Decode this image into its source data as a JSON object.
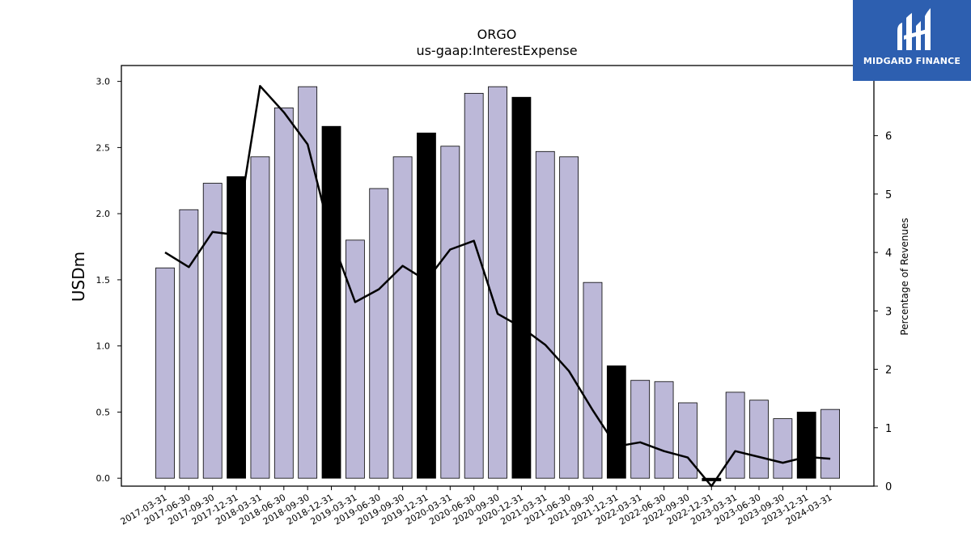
{
  "logo": {
    "text": "MIDGARD FINANCE"
  },
  "chart_data": {
    "type": "bar",
    "title": "ORGO",
    "subtitle": "us-gaap:InterestExpense",
    "ylabel": "USDm",
    "y2label": "Percentage of Revenues",
    "ylim": [
      -0.06,
      3.12
    ],
    "y2lim": [
      0,
      7.2
    ],
    "yticks": [
      "0.0",
      "0.5",
      "1.0",
      "1.5",
      "2.0",
      "2.5",
      "3.0"
    ],
    "y2ticks": [
      "0",
      "1",
      "2",
      "3",
      "4",
      "5",
      "6"
    ],
    "grid": false,
    "categories": [
      "2017-03-31",
      "2017-06-30",
      "2017-09-30",
      "2017-12-31",
      "2018-03-31",
      "2018-06-30",
      "2018-09-30",
      "2018-12-31",
      "2019-03-31",
      "2019-06-30",
      "2019-09-30",
      "2019-12-31",
      "2020-03-31",
      "2020-06-30",
      "2020-09-30",
      "2020-12-31",
      "2021-03-31",
      "2021-06-30",
      "2021-09-30",
      "2021-12-31",
      "2022-03-31",
      "2022-06-30",
      "2022-09-30",
      "2022-12-31",
      "2023-03-31",
      "2023-06-30",
      "2023-09-30",
      "2023-12-31",
      "2024-03-31"
    ],
    "series": [
      {
        "kind": "bar",
        "values": [
          1.59,
          2.03,
          2.23,
          2.28,
          2.43,
          2.8,
          2.96,
          2.66,
          1.8,
          2.19,
          2.43,
          2.61,
          2.51,
          2.91,
          2.96,
          2.88,
          2.47,
          2.43,
          1.48,
          0.85,
          0.74,
          0.73,
          0.57,
          -0.02,
          0.65,
          0.59,
          0.45,
          0.5,
          0.52
        ],
        "highlight": [
          false,
          false,
          false,
          true,
          false,
          false,
          false,
          true,
          false,
          false,
          false,
          true,
          false,
          false,
          false,
          true,
          false,
          false,
          false,
          true,
          false,
          false,
          false,
          true,
          false,
          false,
          false,
          true,
          false
        ],
        "color": "#bcb8d8",
        "highlight_color": "#000000"
      },
      {
        "kind": "line",
        "axis": "right",
        "values": [
          4.0,
          3.75,
          4.35,
          4.3,
          6.85,
          6.4,
          5.85,
          4.25,
          3.15,
          3.37,
          3.77,
          3.52,
          4.05,
          4.2,
          2.95,
          2.72,
          2.42,
          1.97,
          1.3,
          0.68,
          0.75,
          0.6,
          0.49,
          0.0,
          0.6,
          0.5,
          0.4,
          0.5,
          0.47
        ],
        "color": "#000000"
      }
    ]
  }
}
